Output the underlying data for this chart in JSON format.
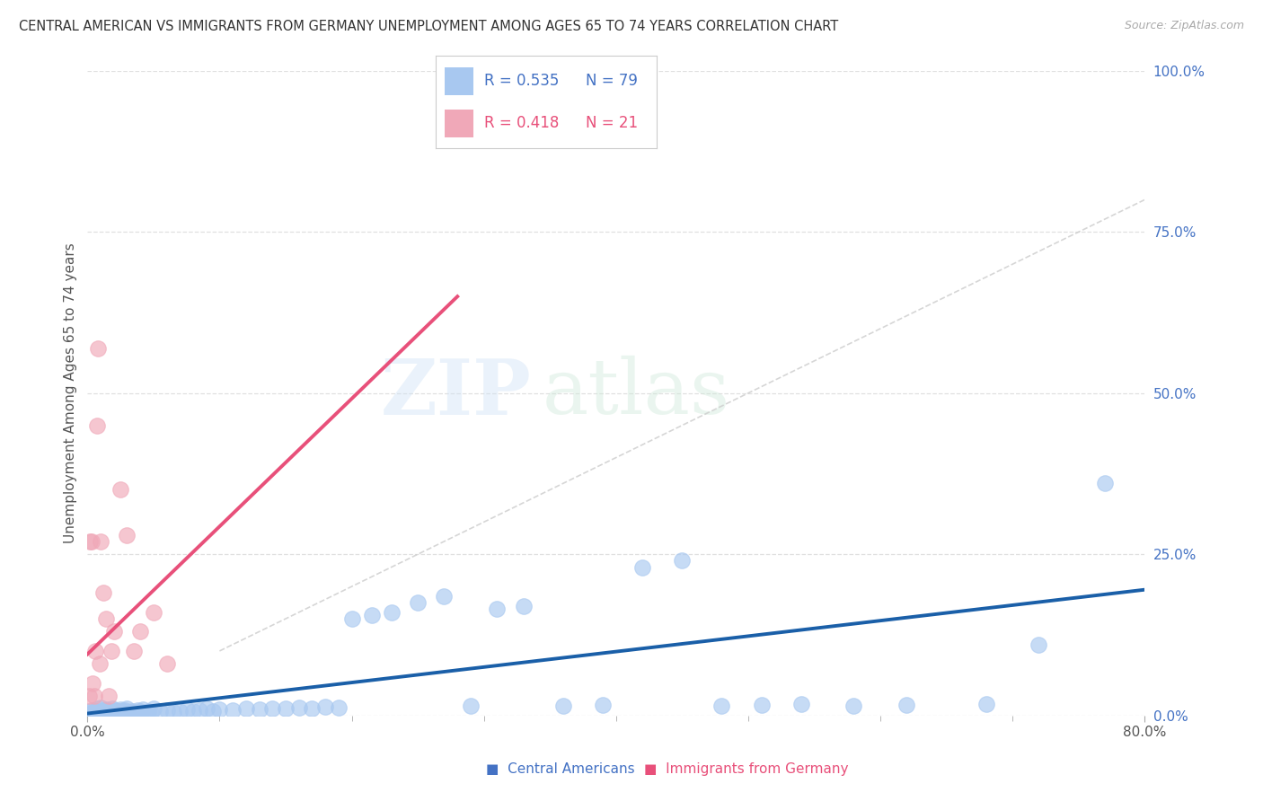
{
  "title": "CENTRAL AMERICAN VS IMMIGRANTS FROM GERMANY UNEMPLOYMENT AMONG AGES 65 TO 74 YEARS CORRELATION CHART",
  "source": "Source: ZipAtlas.com",
  "ylabel": "Unemployment Among Ages 65 to 74 years",
  "series1_label": "Central Americans",
  "series2_label": "Immigrants from Germany",
  "series1_color": "#a8c8f0",
  "series2_color": "#f0a8b8",
  "series1_line_color": "#1a5fa8",
  "series2_line_color": "#e8507a",
  "R1": 0.535,
  "N1": 79,
  "R2": 0.418,
  "N2": 21,
  "xlim": [
    0.0,
    0.8
  ],
  "ylim": [
    0.0,
    1.0
  ],
  "yticks_right": [
    0.0,
    0.25,
    0.5,
    0.75,
    1.0
  ],
  "background_color": "#ffffff",
  "watermark_zip": "ZIP",
  "watermark_atlas": "atlas",
  "series1_x": [
    0.001,
    0.002,
    0.003,
    0.004,
    0.005,
    0.006,
    0.007,
    0.008,
    0.009,
    0.01,
    0.011,
    0.012,
    0.013,
    0.014,
    0.015,
    0.016,
    0.017,
    0.018,
    0.019,
    0.02,
    0.021,
    0.022,
    0.023,
    0.024,
    0.025,
    0.026,
    0.027,
    0.028,
    0.029,
    0.03,
    0.032,
    0.034,
    0.036,
    0.038,
    0.04,
    0.042,
    0.044,
    0.046,
    0.048,
    0.05,
    0.055,
    0.06,
    0.065,
    0.07,
    0.075,
    0.08,
    0.085,
    0.09,
    0.095,
    0.1,
    0.11,
    0.12,
    0.13,
    0.14,
    0.15,
    0.16,
    0.17,
    0.18,
    0.19,
    0.2,
    0.215,
    0.23,
    0.25,
    0.27,
    0.29,
    0.31,
    0.33,
    0.36,
    0.39,
    0.42,
    0.45,
    0.48,
    0.51,
    0.54,
    0.58,
    0.62,
    0.68,
    0.72,
    0.77
  ],
  "series1_y": [
    0.005,
    0.003,
    0.008,
    0.004,
    0.006,
    0.003,
    0.007,
    0.01,
    0.004,
    0.012,
    0.005,
    0.008,
    0.006,
    0.003,
    0.009,
    0.005,
    0.007,
    0.004,
    0.01,
    0.006,
    0.008,
    0.003,
    0.005,
    0.007,
    0.009,
    0.004,
    0.006,
    0.008,
    0.003,
    0.01,
    0.005,
    0.007,
    0.004,
    0.008,
    0.006,
    0.009,
    0.005,
    0.007,
    0.004,
    0.01,
    0.006,
    0.008,
    0.005,
    0.007,
    0.009,
    0.006,
    0.008,
    0.01,
    0.007,
    0.009,
    0.008,
    0.01,
    0.009,
    0.011,
    0.01,
    0.012,
    0.011,
    0.013,
    0.012,
    0.15,
    0.155,
    0.16,
    0.175,
    0.185,
    0.015,
    0.165,
    0.17,
    0.015,
    0.016,
    0.23,
    0.24,
    0.015,
    0.016,
    0.017,
    0.015,
    0.016,
    0.017,
    0.11,
    0.36
  ],
  "series2_x": [
    0.001,
    0.002,
    0.003,
    0.004,
    0.005,
    0.006,
    0.007,
    0.008,
    0.009,
    0.01,
    0.012,
    0.014,
    0.016,
    0.018,
    0.02,
    0.025,
    0.03,
    0.035,
    0.04,
    0.05,
    0.06
  ],
  "series2_y": [
    0.03,
    0.27,
    0.27,
    0.05,
    0.03,
    0.1,
    0.45,
    0.57,
    0.08,
    0.27,
    0.19,
    0.15,
    0.03,
    0.1,
    0.13,
    0.35,
    0.28,
    0.1,
    0.13,
    0.16,
    0.08
  ]
}
